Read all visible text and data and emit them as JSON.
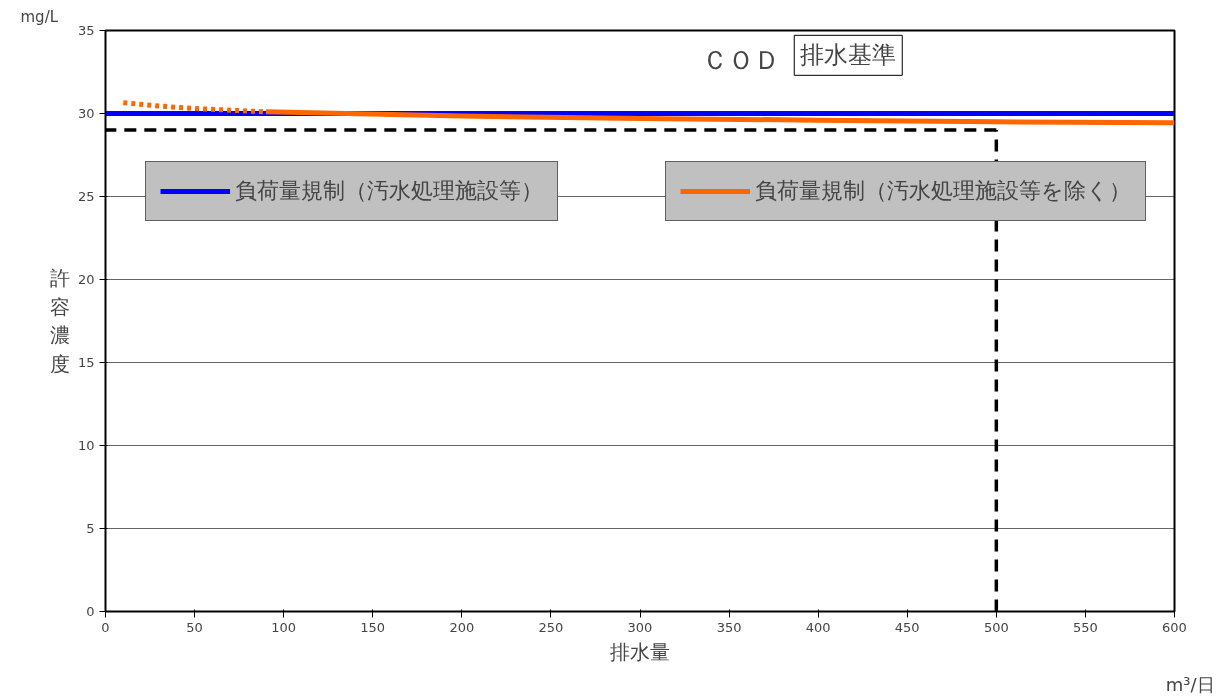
{
  "chart_data": {
    "type": "line",
    "xlabel": "排水量",
    "ylabel": "許容濃度",
    "xlim": [
      0,
      600
    ],
    "ylim": [
      0,
      35
    ],
    "xticks": [
      0,
      50,
      100,
      150,
      200,
      250,
      300,
      350,
      400,
      450,
      500,
      550,
      600
    ],
    "yticks": [
      0,
      5,
      10,
      15,
      20,
      25,
      30,
      35
    ],
    "grid": "y",
    "legend": "top",
    "marker": "none",
    "series": [
      {
        "name": "負荷量規制（汚水処理施設等）",
        "color": "#0000ff",
        "x": [
          0,
          600
        ],
        "values": [
          30,
          30
        ]
      },
      {
        "name": "負荷量規制（汚水処理施設等を除く）",
        "color": "#ff6600",
        "x": [
          90,
          200,
          300,
          400,
          500,
          600
        ],
        "values": [
          30.1,
          29.85,
          29.7,
          29.6,
          29.5,
          29.45
        ]
      },
      {
        "color": "#ff6600",
        "line_style": "dotted",
        "x": [
          10,
          30,
          50,
          70,
          90
        ],
        "values": [
          30.65,
          30.45,
          30.3,
          30.2,
          30.1
        ]
      },
      {
        "color": "#000000",
        "line_style": "dashed",
        "x": [
          500,
          500
        ],
        "values": [
          0,
          29
        ]
      },
      {
        "color": "#000000",
        "line_style": "dashed",
        "x": [
          500,
          0
        ],
        "values": [
          29,
          29
        ]
      }
    ],
    "annotations": [
      "ＣＯＤ",
      {
        "text": "排水基準",
        "x": 395,
        "y": 30
      },
      "mg/L",
      "m³/日"
    ]
  }
}
